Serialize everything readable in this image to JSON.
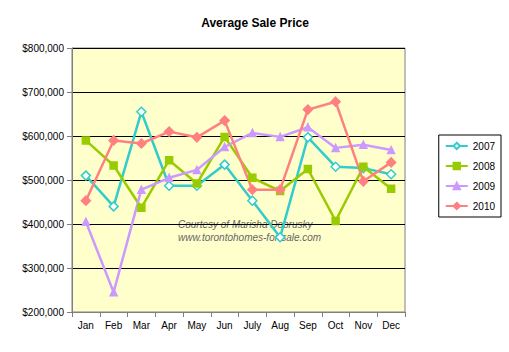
{
  "chart_data": {
    "type": "line",
    "title": "Average Sale Price",
    "annotations": [
      "Courtesy of Marisha Dobrusky",
      "www.torontohomes-for-sale.com"
    ],
    "categories": [
      "Jan",
      "Feb",
      "Mar",
      "Apr",
      "May",
      "Jun",
      "July",
      "Aug",
      "Sep",
      "Oct",
      "Nov",
      "Dec"
    ],
    "series": [
      {
        "name": "2007",
        "color": "#33CCCC",
        "marker": "diamond",
        "values": [
          510000,
          440000,
          655000,
          487000,
          487000,
          535000,
          453000,
          370000,
          597000,
          530000,
          527000,
          513000
        ]
      },
      {
        "name": "2008",
        "color": "#99CC00",
        "marker": "square",
        "values": [
          590000,
          533000,
          437000,
          545000,
          492000,
          598000,
          505000,
          475000,
          525000,
          407000,
          530000,
          480000
        ]
      },
      {
        "name": "2009",
        "color": "#CC99FF",
        "marker": "triangle",
        "values": [
          405000,
          245000,
          478000,
          505000,
          523000,
          575000,
          607000,
          598000,
          620000,
          573000,
          580000,
          568000
        ]
      },
      {
        "name": "2010",
        "color": "#FF8080",
        "marker": "diamond",
        "values": [
          453000,
          590000,
          583000,
          610000,
          597000,
          635000,
          478000,
          478000,
          660000,
          678000,
          497000,
          540000
        ]
      }
    ],
    "ylim": [
      200000,
      800000
    ],
    "yticks": [
      {
        "value": 200000,
        "label": "$200,000"
      },
      {
        "value": 300000,
        "label": "$300,000"
      },
      {
        "value": 400000,
        "label": "$400,000"
      },
      {
        "value": 500000,
        "label": "$500,000"
      },
      {
        "value": 600000,
        "label": "$600,000"
      },
      {
        "value": 700000,
        "label": "$700,000"
      },
      {
        "value": 800000,
        "label": "$800,000"
      }
    ],
    "grid": true,
    "legend": "right"
  }
}
